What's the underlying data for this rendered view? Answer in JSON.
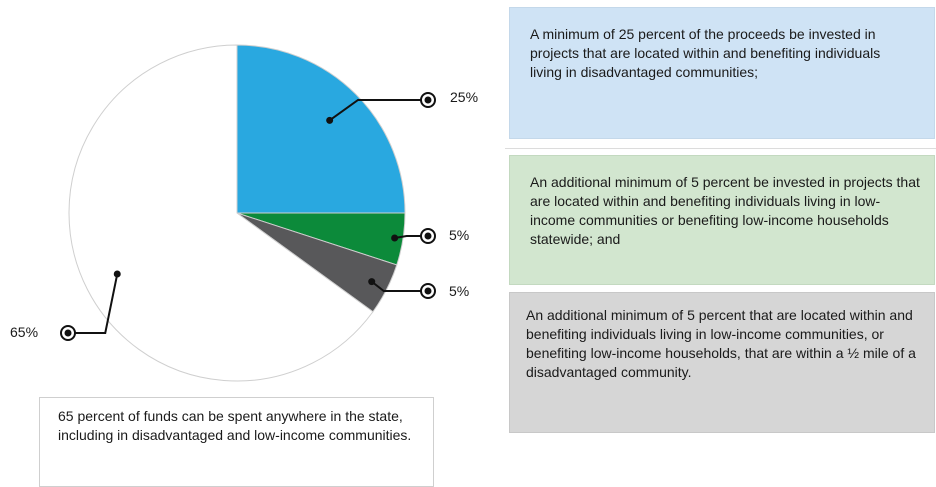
{
  "chart_data": {
    "type": "pie",
    "slices": [
      {
        "label": "25%",
        "value": 25,
        "color": "#29a8e0"
      },
      {
        "label": "5%",
        "value": 5,
        "color": "#0c8a3a"
      },
      {
        "label": "5%",
        "value": 5,
        "color": "#58585a"
      },
      {
        "label": "65%",
        "value": 65,
        "color": "#ffffff"
      }
    ],
    "annotations": [
      "A minimum of 25 percent of the proceeds be invested in projects that are located within and benefiting individuals living in disadvantaged communities;",
      "An additional minimum of 5 percent be invested in projects that are located within and benefiting individuals living in low-income communities or benefiting low-income households statewide; and",
      "An additional minimum of 5 percent that are located within and benefiting individuals living in low-income communities, or benefiting low-income households, that are within a ½ mile of a disadvantaged community.",
      "65 percent of funds can be spent anywhere in the state, including in disadvantaged and low-income communities."
    ]
  }
}
